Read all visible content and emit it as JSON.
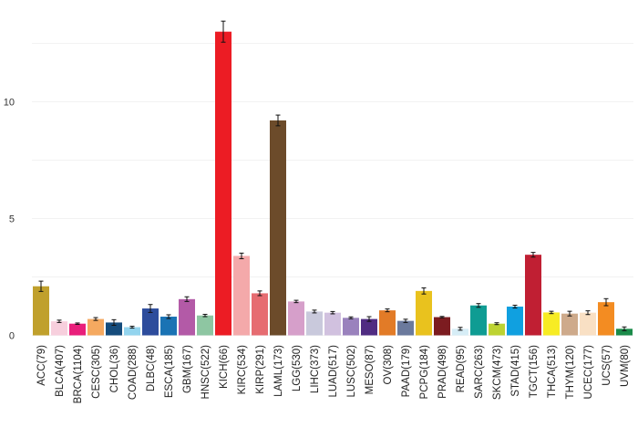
{
  "chart_data": {
    "type": "bar",
    "title": "",
    "xlabel": "",
    "ylabel": "",
    "ylim": [
      0,
      13.5
    ],
    "yticks": [
      0,
      5,
      10
    ],
    "grid": true,
    "legend": "none",
    "categories": [
      "ACC(79)",
      "BLCA(407)",
      "BRCA(1104)",
      "CESC(305)",
      "CHOL(36)",
      "COAD(288)",
      "DLBC(48)",
      "ESCA(185)",
      "GBM(167)",
      "HNSC(522)",
      "KICH(66)",
      "KIRC(534)",
      "KIRP(291)",
      "LAML(173)",
      "LGG(530)",
      "LIHC(373)",
      "LUAD(517)",
      "LUSC(502)",
      "MESO(87)",
      "OV(308)",
      "PAAD(179)",
      "PCPG(184)",
      "PRAD(498)",
      "READ(95)",
      "SARC(263)",
      "SKCM(473)",
      "STAD(415)",
      "TGCT(156)",
      "THCA(513)",
      "THYM(120)",
      "UCEC(177)",
      "UCS(57)",
      "UVM(80)"
    ],
    "values": [
      2.1,
      0.6,
      0.5,
      0.7,
      0.55,
      0.35,
      1.15,
      0.8,
      1.55,
      0.85,
      13.0,
      3.4,
      1.8,
      9.2,
      1.45,
      1.02,
      0.97,
      0.75,
      0.7,
      1.07,
      0.62,
      1.9,
      0.78,
      0.28,
      1.28,
      0.5,
      1.23,
      3.45,
      0.98,
      0.93,
      0.97,
      1.42,
      0.28
    ],
    "errors": [
      0.22,
      0.05,
      0.03,
      0.06,
      0.12,
      0.04,
      0.17,
      0.08,
      0.1,
      0.05,
      0.45,
      0.12,
      0.1,
      0.23,
      0.05,
      0.06,
      0.05,
      0.04,
      0.1,
      0.06,
      0.07,
      0.13,
      0.03,
      0.06,
      0.08,
      0.04,
      0.06,
      0.1,
      0.05,
      0.1,
      0.08,
      0.15,
      0.08
    ],
    "colors": [
      "#c0a02c",
      "#f7cfdd",
      "#e91f7b",
      "#f5a960",
      "#154c7c",
      "#93d4ee",
      "#2d4c9c",
      "#1a73b4",
      "#b35aa7",
      "#8ec6a2",
      "#ec1c24",
      "#f4a9aa",
      "#e66c71",
      "#6c4b2a",
      "#d69fca",
      "#c9c9dc",
      "#d1c1df",
      "#9a82bd",
      "#502c82",
      "#e27b27",
      "#6b7a9d",
      "#e9c21e",
      "#7c1c20",
      "#d6edf6",
      "#0f9c93",
      "#bdd332",
      "#10a0e0",
      "#c01f33",
      "#f7ec24",
      "#ceaa8b",
      "#f9e0c4",
      "#f38c22",
      "#1b8b4a"
    ]
  }
}
